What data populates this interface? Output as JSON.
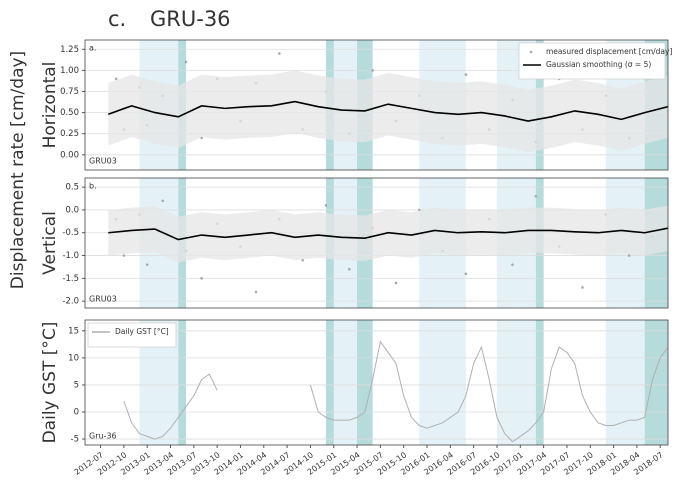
{
  "panel": "c.",
  "title": "GRU-36",
  "ylabel": "Displacement rate [cm/day]",
  "chart_data": [
    {
      "type": "line",
      "ylabel": "Horizontal",
      "label": "a.",
      "site": "GRU03",
      "legend": "upper right",
      "grid": true,
      "xlim": [
        "2012-05",
        "2018-08"
      ],
      "ylim": [
        -0.18,
        1.36
      ],
      "yticks": [
        {
          "value": 0,
          "label": "0.00"
        },
        0.25,
        {
          "value": 0.5,
          "label": "0.50"
        },
        0.75,
        {
          "value": 1,
          "label": "1.00"
        },
        1.25
      ],
      "shaded_periods": [
        {
          "start": "2012-12",
          "end": "2013-05",
          "color": "#e4f2f7"
        },
        {
          "start": "2013-05",
          "end": "2013-06",
          "color": "#b5dbdb"
        },
        {
          "start": "2014-12",
          "end": "2015-05",
          "color": "#e4f2f7"
        },
        {
          "start": "2014-12",
          "end": "2015-01",
          "color": "#b5dbdb"
        },
        {
          "start": "2015-04",
          "end": "2015-06",
          "color": "#b5dbdb"
        },
        {
          "start": "2015-12",
          "end": "2016-06",
          "color": "#e4f2f7"
        },
        {
          "start": "2016-10",
          "end": "2017-03",
          "color": "#e4f2f7"
        },
        {
          "start": "2017-03",
          "end": "2017-04",
          "color": "#b5dbdb"
        },
        {
          "start": "2017-12",
          "end": "2018-05",
          "color": "#e4f2f7"
        },
        {
          "start": "2018-05",
          "end": "2018-08",
          "color": "#b5dbdb"
        }
      ],
      "series": [
        {
          "name": "measured displacement [cm/day]",
          "color": "#a8a8a8",
          "kind": "scatter",
          "x": [
            "2012-09",
            "2012-10",
            "2012-12",
            "2013-01",
            "2013-03",
            "2013-06",
            "2013-08",
            "2013-10",
            "2014-01",
            "2014-03",
            "2014-06",
            "2014-09",
            "2014-12",
            "2015-03",
            "2015-06",
            "2015-09",
            "2015-12",
            "2016-03",
            "2016-06",
            "2016-09",
            "2016-12",
            "2017-03",
            "2017-06",
            "2017-09",
            "2017-12",
            "2018-03",
            "2018-06"
          ],
          "values": [
            0.9,
            0.3,
            0.8,
            0.35,
            0.7,
            1.1,
            0.2,
            0.9,
            0.4,
            0.85,
            1.2,
            0.3,
            0.75,
            0.25,
            1.0,
            0.4,
            0.7,
            0.2,
            0.95,
            0.3,
            0.65,
            0.15,
            0.9,
            0.3,
            0.7,
            0.2,
            1.1
          ]
        },
        {
          "name": "Gaussian smoothing (σ = 5)",
          "color": "#000000",
          "kind": "line",
          "band_color": "#e6e6e6",
          "x": [
            "2012-08",
            "2012-11",
            "2013-02",
            "2013-05",
            "2013-08",
            "2013-11",
            "2014-02",
            "2014-05",
            "2014-08",
            "2014-11",
            "2015-02",
            "2015-05",
            "2015-08",
            "2015-11",
            "2016-02",
            "2016-05",
            "2016-08",
            "2016-11",
            "2017-02",
            "2017-05",
            "2017-08",
            "2017-11",
            "2018-02",
            "2018-05",
            "2018-08"
          ],
          "values": [
            0.48,
            0.58,
            0.5,
            0.45,
            0.58,
            0.55,
            0.57,
            0.58,
            0.63,
            0.57,
            0.53,
            0.52,
            0.6,
            0.55,
            0.5,
            0.48,
            0.5,
            0.46,
            0.4,
            0.45,
            0.52,
            0.48,
            0.42,
            0.5,
            0.57
          ],
          "upper": [
            0.85,
            0.95,
            0.87,
            0.82,
            0.95,
            0.92,
            0.94,
            0.95,
            1.0,
            0.94,
            0.9,
            0.89,
            0.97,
            0.92,
            0.87,
            0.85,
            0.87,
            0.83,
            0.77,
            0.82,
            0.89,
            0.85,
            0.79,
            0.87,
            0.94
          ],
          "lower": [
            0.11,
            0.21,
            0.13,
            0.08,
            0.21,
            0.18,
            0.2,
            0.21,
            0.26,
            0.2,
            0.16,
            0.15,
            0.23,
            0.18,
            0.13,
            0.11,
            0.13,
            0.09,
            0.03,
            0.08,
            0.15,
            0.11,
            0.05,
            0.13,
            0.2
          ]
        }
      ]
    },
    {
      "type": "line",
      "ylabel": "Vertical",
      "label": "b.",
      "site": "GRU03",
      "grid": true,
      "xlim": [
        "2012-05",
        "2018-08"
      ],
      "ylim": [
        -2.15,
        0.7
      ],
      "yticks": [
        {
          "value": -2,
          "label": "-2.0"
        },
        -1.5,
        {
          "value": -1,
          "label": "-1.0"
        },
        -0.5,
        {
          "value": 0,
          "label": "0.0"
        },
        0.5
      ],
      "shaded_periods": [
        {
          "start": "2012-12",
          "end": "2013-05",
          "color": "#e4f2f7"
        },
        {
          "start": "2013-05",
          "end": "2013-06",
          "color": "#b5dbdb"
        },
        {
          "start": "2014-12",
          "end": "2015-05",
          "color": "#e4f2f7"
        },
        {
          "start": "2014-12",
          "end": "2015-01",
          "color": "#b5dbdb"
        },
        {
          "start": "2015-04",
          "end": "2015-06",
          "color": "#b5dbdb"
        },
        {
          "start": "2015-12",
          "end": "2016-06",
          "color": "#e4f2f7"
        },
        {
          "start": "2016-10",
          "end": "2017-03",
          "color": "#e4f2f7"
        },
        {
          "start": "2017-03",
          "end": "2017-04",
          "color": "#b5dbdb"
        },
        {
          "start": "2017-12",
          "end": "2018-05",
          "color": "#e4f2f7"
        },
        {
          "start": "2018-05",
          "end": "2018-08",
          "color": "#b5dbdb"
        }
      ],
      "series": [
        {
          "color": "#a8a8a8",
          "kind": "scatter",
          "x": [
            "2012-09",
            "2012-10",
            "2012-12",
            "2013-01",
            "2013-03",
            "2013-06",
            "2013-08",
            "2013-10",
            "2014-01",
            "2014-03",
            "2014-06",
            "2014-09",
            "2014-12",
            "2015-03",
            "2015-06",
            "2015-09",
            "2015-12",
            "2016-03",
            "2016-06",
            "2016-09",
            "2016-12",
            "2017-03",
            "2017-06",
            "2017-09",
            "2017-12",
            "2018-03",
            "2018-06"
          ],
          "values": [
            -0.2,
            -1.0,
            -0.1,
            -1.2,
            0.2,
            -0.9,
            -1.5,
            -0.3,
            -0.8,
            -1.8,
            -0.2,
            -1.1,
            0.1,
            -1.3,
            -0.4,
            -1.6,
            0.0,
            -0.9,
            -1.4,
            -0.2,
            -1.2,
            0.3,
            -0.8,
            -1.7,
            -0.1,
            -1.0,
            -0.6
          ]
        },
        {
          "color": "#000000",
          "kind": "line",
          "band_color": "#e6e6e6",
          "x": [
            "2012-08",
            "2012-11",
            "2013-02",
            "2013-05",
            "2013-08",
            "2013-11",
            "2014-02",
            "2014-05",
            "2014-08",
            "2014-11",
            "2015-02",
            "2015-05",
            "2015-08",
            "2015-11",
            "2016-02",
            "2016-05",
            "2016-08",
            "2016-11",
            "2017-02",
            "2017-05",
            "2017-08",
            "2017-11",
            "2018-02",
            "2018-05",
            "2018-08"
          ],
          "values": [
            -0.5,
            -0.45,
            -0.42,
            -0.65,
            -0.55,
            -0.6,
            -0.55,
            -0.5,
            -0.6,
            -0.55,
            -0.6,
            -0.62,
            -0.5,
            -0.55,
            -0.45,
            -0.5,
            -0.48,
            -0.5,
            -0.45,
            -0.45,
            -0.48,
            -0.5,
            -0.45,
            -0.5,
            -0.4
          ],
          "upper": [
            0.0,
            0.05,
            0.08,
            -0.15,
            -0.05,
            -0.1,
            -0.05,
            0.0,
            -0.1,
            -0.05,
            -0.1,
            -0.12,
            0.0,
            -0.05,
            0.05,
            0.0,
            0.02,
            0.0,
            0.05,
            0.05,
            0.02,
            0.0,
            0.05,
            0.0,
            0.1
          ],
          "lower": [
            -1.0,
            -0.95,
            -0.92,
            -1.15,
            -1.05,
            -1.1,
            -1.05,
            -1.0,
            -1.1,
            -1.05,
            -1.1,
            -1.12,
            -1.0,
            -1.05,
            -0.95,
            -1.0,
            -0.98,
            -1.0,
            -0.95,
            -0.95,
            -0.98,
            -1.0,
            -0.95,
            -1.0,
            -0.9
          ]
        }
      ]
    },
    {
      "type": "line",
      "ylabel": "Daily GST [°C]",
      "site": "Gru-36",
      "legend": "upper left",
      "grid": true,
      "xlim": [
        "2012-05",
        "2018-08"
      ],
      "ylim": [
        -6.1,
        17
      ],
      "yticks": [
        -5,
        0,
        5,
        10,
        15
      ],
      "xticks": [
        "2012-07",
        "2012-10",
        "2013-01",
        "2013-04",
        "2013-07",
        "2013-10",
        "2014-01",
        "2014-04",
        "2014-07",
        "2014-10",
        "2015-01",
        "2015-04",
        "2015-07",
        "2015-10",
        "2016-01",
        "2016-04",
        "2016-07",
        "2016-10",
        "2017-01",
        "2017-04",
        "2017-07",
        "2017-10",
        "2018-01",
        "2018-04",
        "2018-07"
      ],
      "shaded_periods": [
        {
          "start": "2012-12",
          "end": "2013-05",
          "color": "#e4f2f7"
        },
        {
          "start": "2013-05",
          "end": "2013-06",
          "color": "#b5dbdb"
        },
        {
          "start": "2014-12",
          "end": "2015-05",
          "color": "#e4f2f7"
        },
        {
          "start": "2014-12",
          "end": "2015-01",
          "color": "#b5dbdb"
        },
        {
          "start": "2015-04",
          "end": "2015-06",
          "color": "#b5dbdb"
        },
        {
          "start": "2015-12",
          "end": "2016-06",
          "color": "#e4f2f7"
        },
        {
          "start": "2016-10",
          "end": "2017-03",
          "color": "#e4f2f7"
        },
        {
          "start": "2017-03",
          "end": "2017-04",
          "color": "#b5dbdb"
        },
        {
          "start": "2017-12",
          "end": "2018-05",
          "color": "#e4f2f7"
        },
        {
          "start": "2018-05",
          "end": "2018-08",
          "color": "#b5dbdb"
        }
      ],
      "series": [
        {
          "name": "Daily GST [°C]",
          "color": "#b0b0b0",
          "kind": "line",
          "x": [
            "2012-10",
            "2012-11",
            "2012-12",
            "2013-01",
            "2013-02",
            "2013-03",
            "2013-04",
            "2013-05",
            "2013-06",
            "2013-07",
            "2013-08",
            "2013-09",
            "2013-10",
            "2013-11",
            "2013-12",
            "2014-01",
            "2014-02",
            "2014-03",
            "2014-04",
            "2014-05",
            "2014-06",
            "2014-07",
            "2014-08",
            "2014-09",
            "2014-10",
            "2014-11",
            "2014-12",
            "2015-01",
            "2015-02",
            "2015-03",
            "2015-04",
            "2015-05",
            "2015-06",
            "2015-07",
            "2015-08",
            "2015-09",
            "2015-10",
            "2015-11",
            "2015-12",
            "2016-01",
            "2016-02",
            "2016-03",
            "2016-04",
            "2016-05",
            "2016-06",
            "2016-07",
            "2016-08",
            "2016-09",
            "2016-10",
            "2016-11",
            "2016-12",
            "2017-01",
            "2017-02",
            "2017-03",
            "2017-04",
            "2017-05",
            "2017-06",
            "2017-07",
            "2017-08",
            "2017-09",
            "2017-10",
            "2017-11",
            "2017-12",
            "2018-01",
            "2018-02",
            "2018-03",
            "2018-04",
            "2018-05",
            "2018-06",
            "2018-07",
            "2018-08"
          ],
          "values": [
            2,
            -2,
            -4,
            -4.5,
            -5,
            -4.5,
            -3,
            -1,
            1,
            3,
            6,
            7,
            4,
            null,
            null,
            null,
            null,
            null,
            null,
            null,
            null,
            null,
            null,
            null,
            5,
            0,
            -1,
            -1.5,
            -1.5,
            -1.5,
            -1,
            0,
            6,
            13,
            11,
            9,
            3,
            -1,
            -2.5,
            -3,
            -2.5,
            -2,
            -1,
            0,
            3,
            9,
            12,
            6,
            -1,
            -4,
            -5.5,
            -4.5,
            -3.5,
            -2,
            0,
            8,
            12,
            11,
            9,
            3,
            0,
            -2,
            -2.5,
            -2.5,
            -2,
            -1.5,
            -1.5,
            -1,
            6,
            10,
            12
          ]
        }
      ]
    }
  ]
}
